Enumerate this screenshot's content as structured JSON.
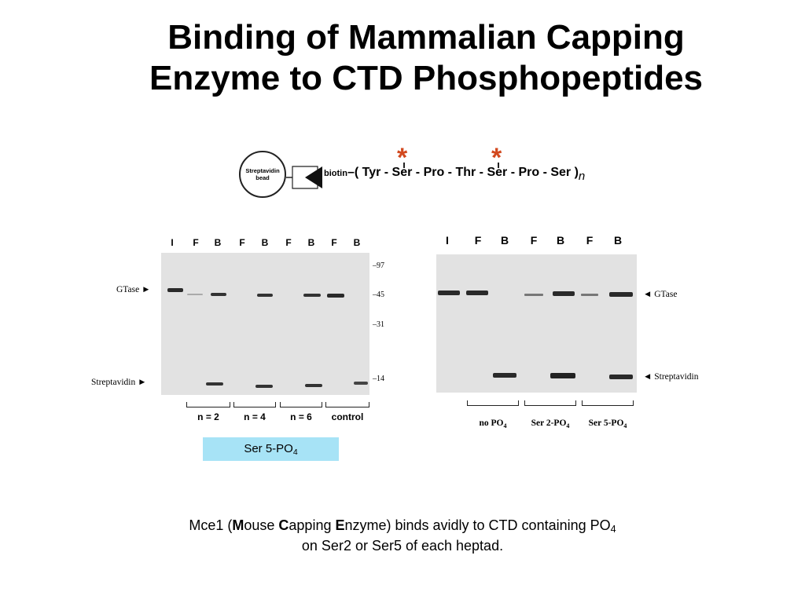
{
  "title": {
    "line1": "Binding of Mammalian Capping",
    "line2": "Enzyme to CTD Phosphopeptides"
  },
  "schematic": {
    "bead_label_1": "Streptavidin",
    "bead_label_2": "bead",
    "biotin_label": "biotin",
    "sequence": "( Tyr - Ser - Pro - Thr - Ser - Pro - Ser )",
    "repeat_symbol": "n",
    "phospho_marker": "*",
    "marker_color": "#d2491f"
  },
  "left_gel": {
    "lane_labels": [
      "I",
      "F",
      "B",
      "F",
      "B",
      "F",
      "B",
      "F",
      "B"
    ],
    "band_labels": [
      "GTase ►",
      "Streptavidin ►"
    ],
    "mw_markers": [
      "97",
      "45",
      "31",
      "14"
    ],
    "groups": [
      "n = 2",
      "n = 4",
      "n = 6",
      "control"
    ]
  },
  "right_gel": {
    "lane_labels": [
      "I",
      "F",
      "B",
      "F",
      "B",
      "F",
      "B"
    ],
    "band_labels": [
      "◄ GTase",
      "◄ Streptavidin"
    ],
    "groups": [
      {
        "label": "no PO",
        "sub": "4"
      },
      {
        "label": "Ser 2-PO",
        "sub": "4"
      },
      {
        "label": "Ser 5-PO",
        "sub": "4"
      }
    ]
  },
  "highlight": {
    "label": "Ser 5-PO",
    "sub": "4",
    "color": "#a7e3f6"
  },
  "caption": {
    "pre": "Mce1 (",
    "m_bold": "M",
    "m_rest": "ouse ",
    "c_bold": "C",
    "c_rest": "apping ",
    "e_bold": "E",
    "e_rest": "nzyme) binds avidly to CTD containing PO",
    "sub": "4",
    "line2": "on Ser2 or Ser5 of each heptad."
  }
}
